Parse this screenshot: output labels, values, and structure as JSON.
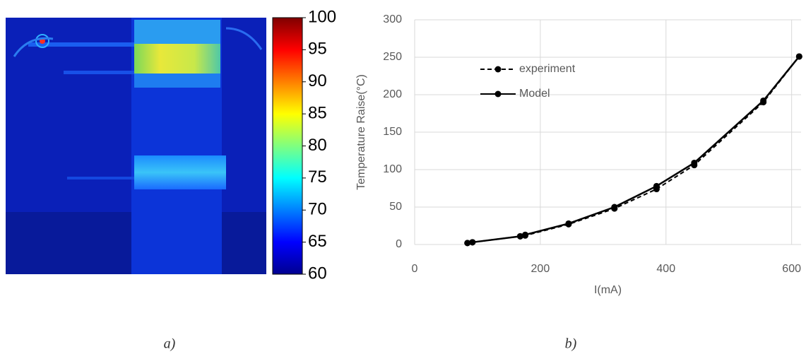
{
  "chart_data": [
    {
      "type": "thermal-image",
      "label": "a)",
      "clim": [
        60,
        100
      ],
      "cticks": [
        60,
        65,
        70,
        75,
        80,
        85,
        90,
        95,
        100
      ]
    },
    {
      "type": "line",
      "label": "b)",
      "xlabel": "I(mA)",
      "ylabel": "Temperature Raise(°C)",
      "x": [
        84,
        92,
        168,
        176,
        245,
        318,
        385,
        445,
        555,
        612
      ],
      "series": [
        {
          "name": "experiment",
          "color": "#000000",
          "dash": true,
          "values": [
            2,
            3,
            11,
            12,
            27,
            48,
            74,
            106,
            190,
            251
          ]
        },
        {
          "name": "Model",
          "color": "#000000",
          "dash": false,
          "values": [
            2,
            3,
            11,
            13,
            28,
            50,
            78,
            109,
            192,
            251
          ]
        }
      ],
      "xlim": [
        0,
        615
      ],
      "xticks": [
        0,
        200,
        400,
        600
      ],
      "ylim": [
        0,
        300
      ],
      "yticks": [
        0,
        50,
        100,
        150,
        200,
        250,
        300
      ],
      "grid": true,
      "legend": "upper left"
    }
  ]
}
